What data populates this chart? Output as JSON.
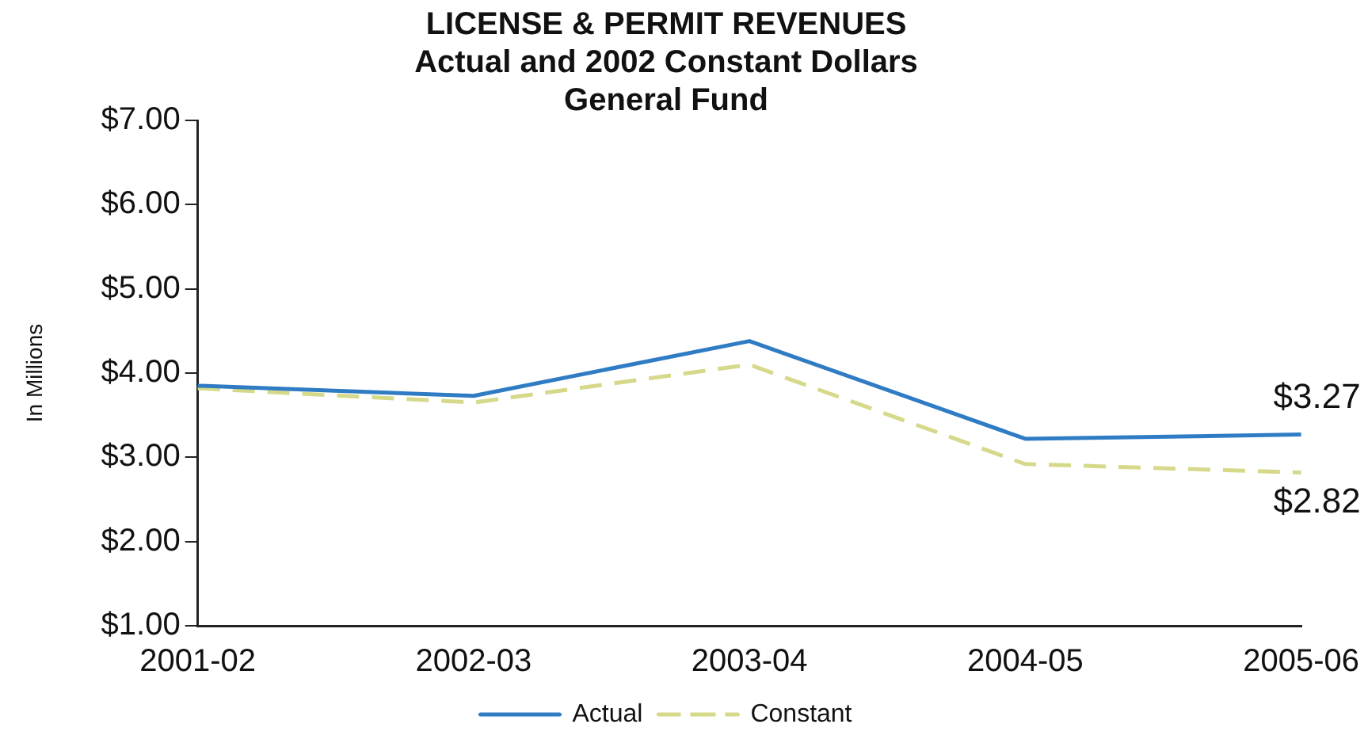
{
  "chart_data": {
    "type": "line",
    "title": [
      "LICENSE & PERMIT REVENUES",
      "Actual and 2002 Constant Dollars",
      "General Fund"
    ],
    "ylabel": "In Millions",
    "categories": [
      "2001-02",
      "2002-03",
      "2003-04",
      "2004-05",
      "2005-06"
    ],
    "series": [
      {
        "name": "Actual",
        "color": "#2f7cc4",
        "line_style": "solid",
        "values": [
          3.85,
          3.73,
          4.38,
          3.22,
          3.27
        ],
        "value_labels": [
          null,
          null,
          null,
          null,
          "$3.27"
        ]
      },
      {
        "name": "Constant",
        "color": "#d6d98a",
        "line_style": "dashed",
        "values": [
          3.82,
          3.65,
          4.1,
          2.92,
          2.82
        ],
        "value_labels": [
          null,
          null,
          null,
          null,
          "$2.82"
        ]
      }
    ],
    "ylim": [
      1,
      7
    ],
    "yticks": [
      {
        "value": 1,
        "label": "$1.00"
      },
      {
        "value": 2,
        "label": "$2.00"
      },
      {
        "value": 3,
        "label": "$3.00"
      },
      {
        "value": 4,
        "label": "$4.00"
      },
      {
        "value": 5,
        "label": "$5.00"
      },
      {
        "value": 6,
        "label": "$6.00"
      },
      {
        "value": 7,
        "label": "$7.00"
      }
    ],
    "grid": false,
    "legend": "bottom",
    "marker": "none"
  }
}
